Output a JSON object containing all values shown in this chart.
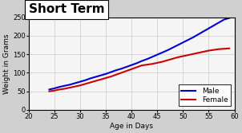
{
  "title": "Short Term",
  "xlabel": "Age in Days",
  "ylabel": "Weight in Grams",
  "xlim": [
    20,
    60
  ],
  "ylim": [
    0,
    250
  ],
  "xticks": [
    20,
    25,
    30,
    35,
    40,
    45,
    50,
    55,
    60
  ],
  "yticks": [
    0,
    50,
    100,
    150,
    200,
    250
  ],
  "male_color": "#0000cc",
  "female_color": "#cc0000",
  "background_color": "#e8e8e8",
  "plot_bg_color": "#f0f0f0",
  "male_x": [
    24,
    25,
    26,
    27,
    28,
    29,
    30,
    31,
    32,
    33,
    34,
    35,
    36,
    37,
    38,
    39,
    40,
    41,
    42,
    43,
    44,
    45,
    46,
    47,
    48,
    49,
    50,
    51,
    52,
    53,
    54,
    55,
    56,
    57,
    58,
    59
  ],
  "male_y": [
    55,
    58,
    62,
    65,
    68,
    72,
    76,
    80,
    85,
    89,
    93,
    97,
    102,
    107,
    111,
    116,
    121,
    126,
    132,
    137,
    143,
    149,
    155,
    161,
    168,
    175,
    182,
    189,
    196,
    204,
    212,
    220,
    228,
    236,
    244,
    248
  ],
  "female_x": [
    24,
    25,
    26,
    27,
    28,
    29,
    30,
    31,
    32,
    33,
    34,
    35,
    36,
    37,
    38,
    39,
    40,
    41,
    42,
    43,
    44,
    45,
    46,
    47,
    48,
    49,
    50,
    51,
    52,
    53,
    54,
    55,
    56,
    57,
    58,
    59
  ],
  "female_y": [
    50,
    52,
    55,
    57,
    60,
    63,
    66,
    70,
    74,
    78,
    82,
    86,
    90,
    95,
    100,
    105,
    110,
    115,
    120,
    122,
    124,
    127,
    130,
    134,
    138,
    142,
    145,
    148,
    151,
    154,
    157,
    160,
    162,
    164,
    165,
    166
  ],
  "title_fontsize": 11,
  "label_fontsize": 6.5,
  "tick_fontsize": 6,
  "legend_fontsize": 6.5,
  "linewidth": 1.5,
  "grid_color": "#cccccc",
  "border_color": "#000000"
}
